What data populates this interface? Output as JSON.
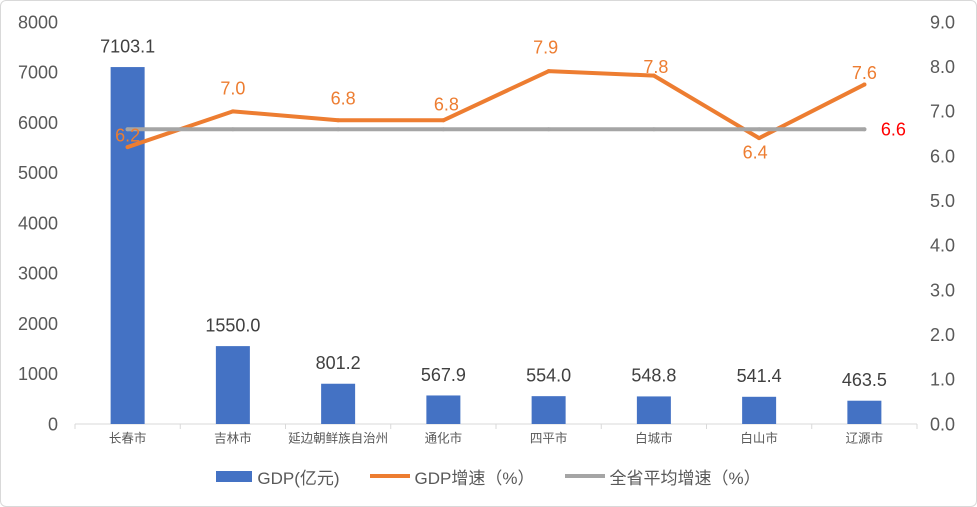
{
  "chart_data": {
    "type": "bar",
    "categories": [
      "长春市",
      "吉林市",
      "延边朝鲜族自治州",
      "通化市",
      "四平市",
      "白城市",
      "白山市",
      "辽源市"
    ],
    "y_axis": {
      "lim": [
        0,
        8000
      ],
      "ticks": [
        "0",
        "1000",
        "2000",
        "3000",
        "4000",
        "5000",
        "6000",
        "7000",
        "8000"
      ]
    },
    "y2_axis": {
      "lim": [
        0,
        9
      ],
      "ticks": [
        "0.0",
        "1.0",
        "2.0",
        "3.0",
        "4.0",
        "5.0",
        "6.0",
        "7.0",
        "8.0",
        "9.0"
      ]
    },
    "grid": false,
    "legend": "bottom",
    "series": [
      {
        "name": "GDP(亿元)",
        "type": "bar",
        "axis": "left",
        "color": "#4472C4",
        "values": [
          7103.1,
          1550.0,
          801.2,
          567.9,
          554.0,
          548.8,
          541.4,
          463.5
        ],
        "data_labels": [
          "7103.1",
          "1550.0",
          "801.2",
          "567.9",
          "554.0",
          "548.8",
          "541.4",
          "463.5"
        ]
      },
      {
        "name": "GDP增速（%）",
        "type": "line",
        "axis": "right",
        "color": "#ED7D31",
        "values": [
          6.2,
          7.0,
          6.8,
          6.8,
          7.9,
          7.8,
          6.4,
          7.6
        ],
        "data_labels": [
          "6.2",
          "7.0",
          "6.8",
          "6.8",
          "7.9",
          "7.8",
          "6.4",
          "7.6"
        ]
      },
      {
        "name": "全省平均增速（%）",
        "type": "line",
        "axis": "right",
        "color": "#A5A5A5",
        "values": [
          6.6,
          6.6,
          6.6,
          6.6,
          6.6,
          6.6,
          6.6,
          6.6
        ],
        "label": "6.6",
        "label_color": "#FF0000"
      }
    ]
  }
}
